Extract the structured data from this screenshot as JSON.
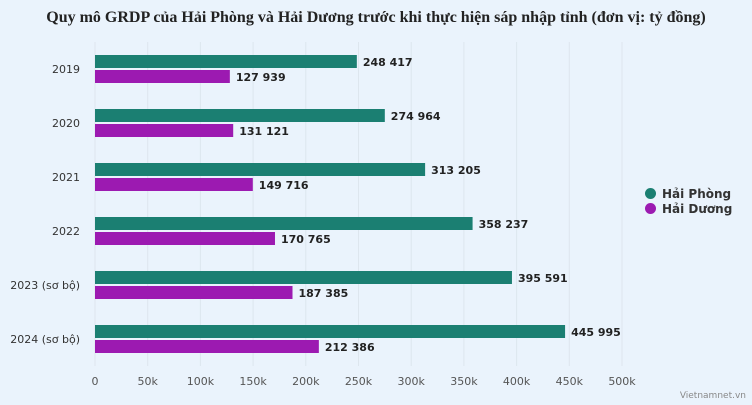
{
  "chart_data": {
    "type": "bar",
    "orientation": "horizontal",
    "title": "Quy mô GRDP của Hải Phòng và Hải Dương trước khi thực hiện sáp nhập tỉnh (đơn vị: tỷ đồng)",
    "categories": [
      "2019",
      "2020",
      "2021",
      "2022",
      "2023 (sơ bộ)",
      "2024 (sơ bộ)"
    ],
    "series": [
      {
        "name": "Hải Phòng",
        "color": "#1b7f72",
        "values": [
          248417,
          274964,
          313205,
          358237,
          395591,
          445995
        ],
        "labels": [
          "248 417",
          "274 964",
          "313 205",
          "358 237",
          "395 591",
          "445 995"
        ]
      },
      {
        "name": "Hải Dương",
        "color": "#9c1ab1",
        "values": [
          127939,
          131121,
          149716,
          170765,
          187385,
          212386
        ],
        "labels": [
          "127 939",
          "131 121",
          "149 716",
          "170 765",
          "187 385",
          "212 386"
        ]
      }
    ],
    "xlim": [
      0,
      500000
    ],
    "xticks": [
      "0",
      "50k",
      "100k",
      "150k",
      "200k",
      "250k",
      "300k",
      "350k",
      "400k",
      "450k",
      "500k"
    ],
    "grid": true,
    "legend": "right"
  },
  "source": "Vietnamnet.vn"
}
